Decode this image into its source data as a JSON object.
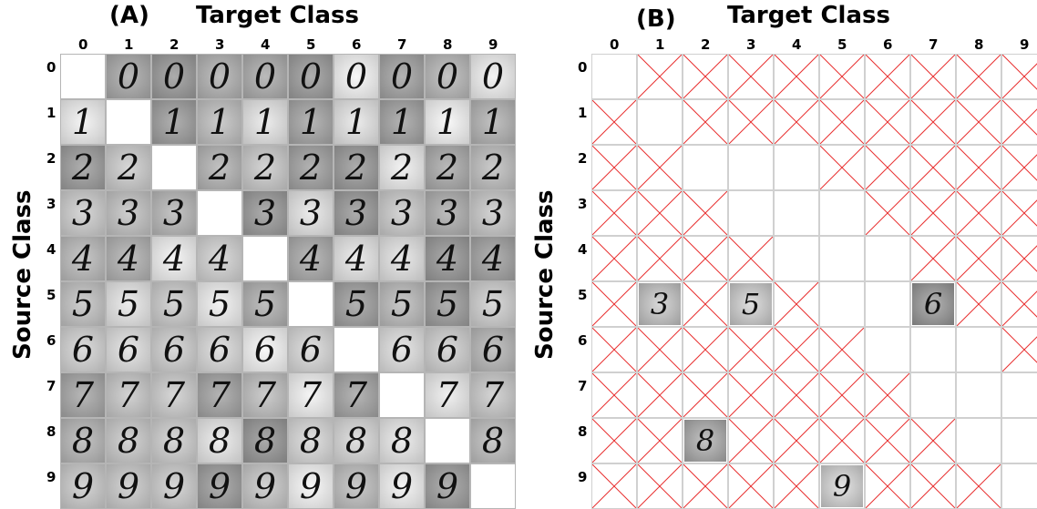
{
  "panel_a": {
    "label": "(A)",
    "x_title": "Target Class",
    "y_title": "Source Class",
    "col_labels": [
      "0",
      "1",
      "2",
      "3",
      "4",
      "5",
      "6",
      "7",
      "8",
      "9"
    ],
    "row_labels": [
      "0",
      "1",
      "2",
      "3",
      "4",
      "5",
      "6",
      "7",
      "8",
      "9"
    ],
    "diagonal": "blank"
  },
  "panel_b": {
    "label": "(B)",
    "x_title": "Target Class",
    "y_title": "Source Class",
    "col_labels": [
      "0",
      "1",
      "2",
      "3",
      "4",
      "5",
      "6",
      "7",
      "8",
      "9"
    ],
    "row_labels": [
      "0",
      "1",
      "2",
      "3",
      "4",
      "5",
      "6",
      "7",
      "8",
      "9"
    ],
    "cross_color": "#e83030",
    "successful_cells": [
      {
        "source": 5,
        "target": 1,
        "glyph": "3"
      },
      {
        "source": 5,
        "target": 3,
        "glyph": "5"
      },
      {
        "source": 5,
        "target": 7,
        "glyph": "6"
      },
      {
        "source": 8,
        "target": 2,
        "glyph": "8"
      },
      {
        "source": 9,
        "target": 5,
        "glyph": "9"
      }
    ]
  }
}
